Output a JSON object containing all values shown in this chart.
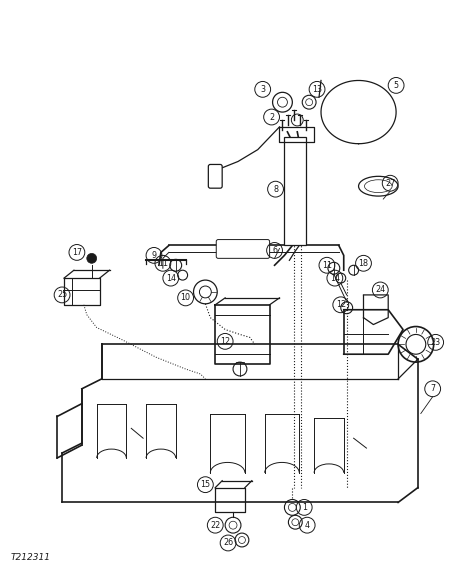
{
  "figsize": [
    4.74,
    5.75
  ],
  "dpi": 100,
  "bg_color": "#ffffff",
  "line_color": "#1a1a1a",
  "footer_text": "T212311"
}
